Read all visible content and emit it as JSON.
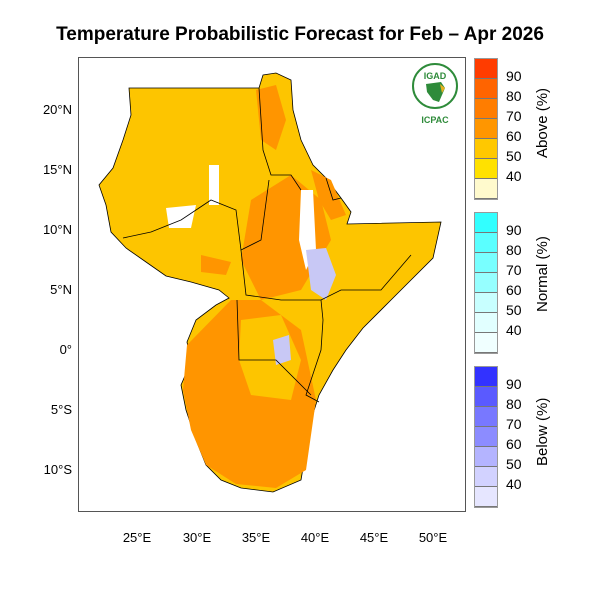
{
  "title": "Temperature Probabilistic Forecast for Feb – Apr 2026",
  "map": {
    "lat_labels": [
      "20°N",
      "15°N",
      "10°N",
      "5°N",
      "0°",
      "5°S",
      "10°S"
    ],
    "lon_labels": [
      "25°E",
      "30°E",
      "35°E",
      "40°E",
      "45°E",
      "50°E"
    ],
    "colors": {
      "above_50": "#fdc500",
      "above_60": "#ff9f00",
      "above_70": "#ff7a00",
      "normal": "#ffffff",
      "below_50": "#c8c8f5"
    }
  },
  "logo": {
    "top_text": "IGAD",
    "bottom_text": "ICPAC"
  },
  "legend": [
    {
      "title": "Above (%)",
      "ticks": [
        "90",
        "80",
        "70",
        "60",
        "50",
        "40"
      ],
      "colors": [
        "#ff3c00",
        "#ff6400",
        "#ff7d00",
        "#ff9600",
        "#ffc800",
        "#ffe100",
        "#fffacd"
      ]
    },
    {
      "title": "Normal (%)",
      "ticks": [
        "90",
        "80",
        "70",
        "60",
        "50",
        "40"
      ],
      "colors": [
        "#32ffff",
        "#5affff",
        "#78ffff",
        "#96ffff",
        "#c8ffff",
        "#e1ffff",
        "#f0ffff"
      ]
    },
    {
      "title": "Below (%)",
      "ticks": [
        "90",
        "80",
        "70",
        "60",
        "50",
        "40"
      ],
      "colors": [
        "#3232ff",
        "#5a5aff",
        "#7878ff",
        "#8c8cff",
        "#b4b4ff",
        "#d2d2ff",
        "#e6e6ff"
      ]
    }
  ]
}
